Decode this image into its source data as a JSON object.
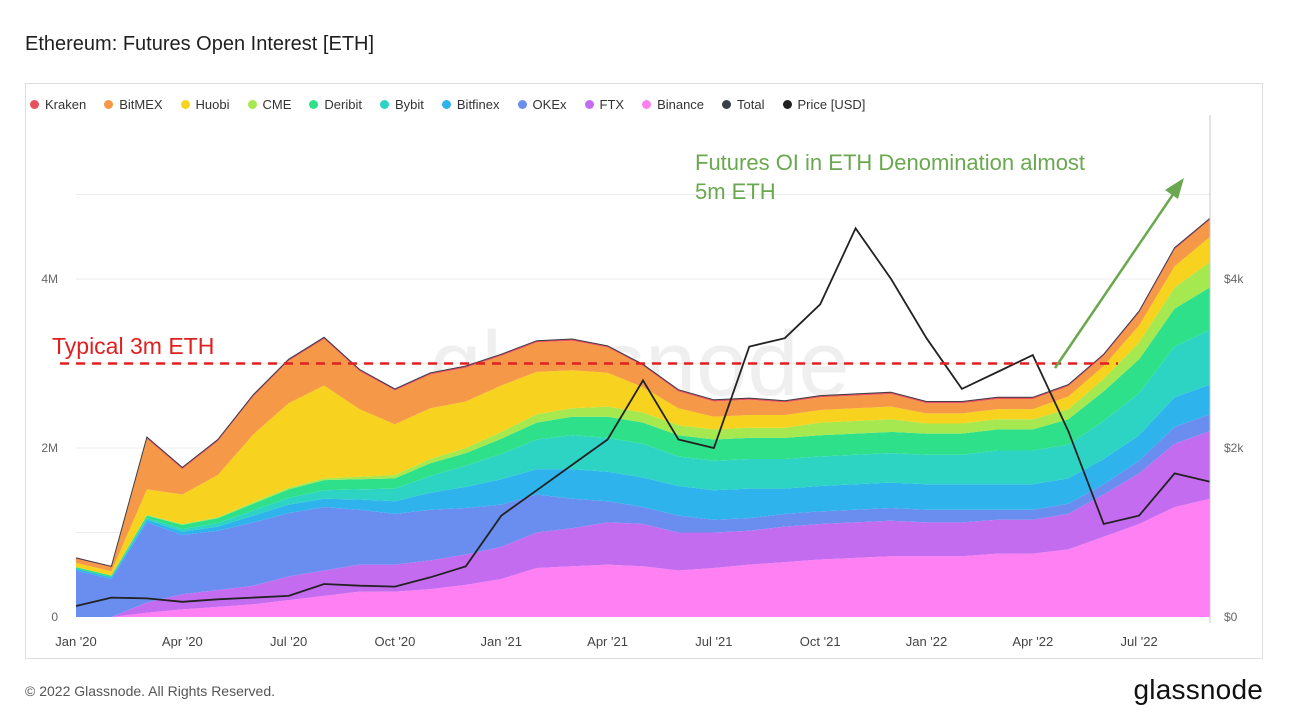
{
  "header": {
    "title": "Ethereum: Futures Open Interest [ETH]"
  },
  "footer": {
    "copyright": "© 2022 Glassnode. All Rights Reserved.",
    "brand": "glassnode"
  },
  "watermark": "glassnode",
  "colors": {
    "Kraken": "#e8515b",
    "BitMEX": "#f59847",
    "Huobi": "#f7d31f",
    "CME": "#a5e84f",
    "Deribit": "#2fe08a",
    "Bybit": "#2dd4c4",
    "Bitfinex": "#2fb3ec",
    "OKEx": "#6a8ef0",
    "FTX": "#c46cf0",
    "Binance": "#ff80f2",
    "Total": "#3b3f46",
    "Price [USD]": "#222222",
    "annotation_green": "#6aa84f",
    "annotation_red": "#e02020"
  },
  "legend": [
    "Kraken",
    "BitMEX",
    "Huobi",
    "CME",
    "Deribit",
    "Bybit",
    "Bitfinex",
    "OKEx",
    "FTX",
    "Binance",
    "Total",
    "Price [USD]"
  ],
  "chart_data": {
    "type": "area",
    "title": "Ethereum: Futures Open Interest [ETH]",
    "stacked": true,
    "x": [
      "2020-01",
      "2020-02",
      "2020-03",
      "2020-04",
      "2020-05",
      "2020-06",
      "2020-07",
      "2020-08",
      "2020-09",
      "2020-10",
      "2020-11",
      "2020-12",
      "2021-01",
      "2021-02",
      "2021-03",
      "2021-04",
      "2021-05",
      "2021-06",
      "2021-07",
      "2021-08",
      "2021-09",
      "2021-10",
      "2021-11",
      "2021-12",
      "2022-01",
      "2022-02",
      "2022-03",
      "2022-04",
      "2022-05",
      "2022-06",
      "2022-07",
      "2022-08",
      "2022-09"
    ],
    "xticks": [
      "Jan '20",
      "Apr '20",
      "Jul '20",
      "Oct '20",
      "Jan '21",
      "Apr '21",
      "Jul '21",
      "Oct '21",
      "Jan '22",
      "Apr '22",
      "Jul '22"
    ],
    "y_left": {
      "ticks": [
        "0",
        "2M",
        "4M"
      ],
      "range": [
        0,
        5000000
      ]
    },
    "y_right": {
      "ticks": [
        "$0",
        "$2k",
        "$4k"
      ],
      "range": [
        0,
        5000
      ]
    },
    "series": [
      {
        "name": "Binance",
        "values": [
          0,
          0,
          0.05,
          0.09,
          0.12,
          0.15,
          0.2,
          0.25,
          0.3,
          0.3,
          0.33,
          0.38,
          0.45,
          0.58,
          0.6,
          0.62,
          0.6,
          0.55,
          0.58,
          0.62,
          0.65,
          0.68,
          0.7,
          0.72,
          0.72,
          0.72,
          0.75,
          0.75,
          0.8,
          0.95,
          1.1,
          1.3,
          1.4
        ]
      },
      {
        "name": "FTX",
        "values": [
          0,
          0,
          0.12,
          0.18,
          0.2,
          0.22,
          0.28,
          0.3,
          0.32,
          0.32,
          0.34,
          0.36,
          0.38,
          0.42,
          0.45,
          0.5,
          0.5,
          0.45,
          0.42,
          0.4,
          0.42,
          0.42,
          0.42,
          0.42,
          0.4,
          0.4,
          0.4,
          0.4,
          0.42,
          0.5,
          0.6,
          0.75,
          0.8
        ]
      },
      {
        "name": "OKEx",
        "values": [
          0.55,
          0.45,
          0.95,
          0.7,
          0.7,
          0.75,
          0.75,
          0.75,
          0.65,
          0.6,
          0.6,
          0.55,
          0.5,
          0.45,
          0.35,
          0.25,
          0.2,
          0.2,
          0.15,
          0.15,
          0.15,
          0.15,
          0.15,
          0.15,
          0.15,
          0.15,
          0.12,
          0.12,
          0.12,
          0.12,
          0.15,
          0.2,
          0.2
        ]
      },
      {
        "name": "Bitfinex",
        "values": [
          0.02,
          0.02,
          0.03,
          0.04,
          0.05,
          0.08,
          0.1,
          0.1,
          0.12,
          0.15,
          0.2,
          0.25,
          0.3,
          0.3,
          0.35,
          0.35,
          0.35,
          0.35,
          0.35,
          0.35,
          0.3,
          0.3,
          0.3,
          0.3,
          0.3,
          0.3,
          0.3,
          0.3,
          0.3,
          0.3,
          0.3,
          0.35,
          0.35
        ]
      },
      {
        "name": "Bybit",
        "values": [
          0,
          0,
          0.02,
          0.03,
          0.04,
          0.06,
          0.08,
          0.1,
          0.12,
          0.15,
          0.2,
          0.25,
          0.3,
          0.35,
          0.4,
          0.4,
          0.4,
          0.35,
          0.35,
          0.35,
          0.35,
          0.35,
          0.35,
          0.35,
          0.35,
          0.35,
          0.4,
          0.4,
          0.4,
          0.45,
          0.5,
          0.6,
          0.65
        ]
      },
      {
        "name": "Deribit",
        "values": [
          0.02,
          0.02,
          0.03,
          0.05,
          0.06,
          0.08,
          0.1,
          0.12,
          0.12,
          0.12,
          0.15,
          0.15,
          0.18,
          0.2,
          0.22,
          0.25,
          0.25,
          0.25,
          0.25,
          0.25,
          0.25,
          0.25,
          0.25,
          0.25,
          0.25,
          0.25,
          0.25,
          0.25,
          0.3,
          0.35,
          0.4,
          0.45,
          0.5
        ]
      },
      {
        "name": "CME",
        "values": [
          0,
          0,
          0.01,
          0.01,
          0.01,
          0.02,
          0.02,
          0.02,
          0.03,
          0.04,
          0.05,
          0.06,
          0.08,
          0.1,
          0.1,
          0.12,
          0.12,
          0.12,
          0.12,
          0.12,
          0.12,
          0.15,
          0.15,
          0.15,
          0.12,
          0.12,
          0.12,
          0.12,
          0.12,
          0.15,
          0.2,
          0.25,
          0.3
        ]
      },
      {
        "name": "Huobi",
        "values": [
          0.05,
          0.05,
          0.3,
          0.35,
          0.5,
          0.8,
          1.0,
          1.1,
          0.8,
          0.6,
          0.6,
          0.55,
          0.55,
          0.5,
          0.45,
          0.4,
          0.3,
          0.2,
          0.15,
          0.15,
          0.15,
          0.15,
          0.15,
          0.15,
          0.12,
          0.12,
          0.12,
          0.12,
          0.15,
          0.15,
          0.2,
          0.25,
          0.3
        ]
      },
      {
        "name": "BitMEX",
        "values": [
          0.05,
          0.05,
          0.6,
          0.3,
          0.4,
          0.45,
          0.5,
          0.55,
          0.45,
          0.4,
          0.4,
          0.4,
          0.35,
          0.35,
          0.35,
          0.3,
          0.25,
          0.2,
          0.18,
          0.18,
          0.15,
          0.15,
          0.15,
          0.15,
          0.12,
          0.12,
          0.12,
          0.12,
          0.12,
          0.12,
          0.15,
          0.2,
          0.2
        ]
      },
      {
        "name": "Kraken",
        "values": [
          0.01,
          0.01,
          0.02,
          0.02,
          0.02,
          0.02,
          0.02,
          0.02,
          0.02,
          0.02,
          0.02,
          0.02,
          0.02,
          0.02,
          0.02,
          0.02,
          0.02,
          0.02,
          0.02,
          0.02,
          0.02,
          0.02,
          0.02,
          0.02,
          0.02,
          0.02,
          0.02,
          0.02,
          0.02,
          0.02,
          0.02,
          0.02,
          0.02
        ]
      }
    ],
    "series_unit": "M ETH",
    "price_series": {
      "name": "Price [USD]",
      "values": [
        130,
        230,
        220,
        180,
        210,
        230,
        250,
        390,
        370,
        360,
        470,
        600,
        1200,
        1500,
        1800,
        2100,
        2800,
        2100,
        2000,
        3200,
        3300,
        3700,
        4600,
        4000,
        3300,
        2700,
        2900,
        3100,
        2200,
        1100,
        1200,
        1700,
        1600
      ]
    },
    "annotations": [
      {
        "text": "Futures OI in ETH Denomination almost 5m ETH",
        "line1": "Futures OI in ETH Denomination almost",
        "line2": "5m ETH",
        "color": "#6aa84f"
      },
      {
        "text": "Typical 3m ETH",
        "level": 3000000,
        "color": "#e02020"
      }
    ],
    "grid": true,
    "legend_placement": "top"
  }
}
